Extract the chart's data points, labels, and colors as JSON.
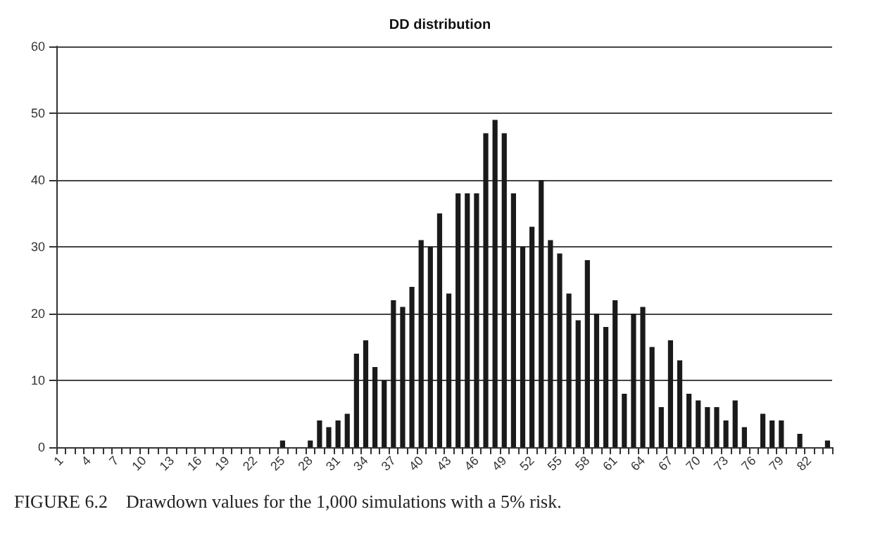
{
  "chart_data": {
    "type": "bar",
    "title": "DD distribution",
    "categories": [
      "1",
      null,
      null,
      "4",
      null,
      null,
      "7",
      null,
      null,
      "10",
      null,
      null,
      "13",
      null,
      null,
      "16",
      null,
      null,
      "19",
      null,
      null,
      "22",
      null,
      null,
      "25",
      null,
      null,
      "28",
      null,
      null,
      "31",
      null,
      null,
      "34",
      null,
      null,
      "37",
      null,
      null,
      "40",
      null,
      null,
      "43",
      null,
      null,
      "46",
      null,
      null,
      "49",
      null,
      null,
      "52",
      null,
      null,
      "55",
      null,
      null,
      "58",
      null,
      null,
      "61",
      null,
      null,
      "64",
      null,
      null,
      "67",
      null,
      null,
      "70",
      null,
      null,
      "73",
      null,
      null,
      "76",
      null,
      null,
      "79",
      null,
      null,
      "82",
      null,
      null
    ],
    "values": [
      0,
      0,
      0,
      0,
      0,
      0,
      0,
      0,
      0,
      0,
      0,
      0,
      0,
      0,
      0,
      0,
      0,
      0,
      0,
      0,
      0,
      0,
      0,
      0,
      1,
      0,
      0,
      1,
      4,
      3,
      4,
      5,
      14,
      16,
      12,
      10,
      22,
      21,
      24,
      31,
      30,
      35,
      23,
      38,
      38,
      38,
      47,
      49,
      47,
      38,
      30,
      33,
      40,
      31,
      29,
      23,
      19,
      28,
      20,
      18,
      22,
      8,
      20,
      21,
      15,
      6,
      16,
      13,
      8,
      7,
      6,
      6,
      4,
      7,
      3,
      0,
      5,
      4,
      4,
      0,
      2,
      0,
      0,
      1
    ],
    "color": "#1a1a1a",
    "ylim": [
      0,
      60
    ],
    "yticks": [
      0,
      10,
      20,
      30,
      40,
      50,
      60
    ],
    "grid": "y",
    "annotations": [
      "FIGURE 6.2    Drawdown values for the 1,000 simulations with a 5% risk."
    ]
  }
}
